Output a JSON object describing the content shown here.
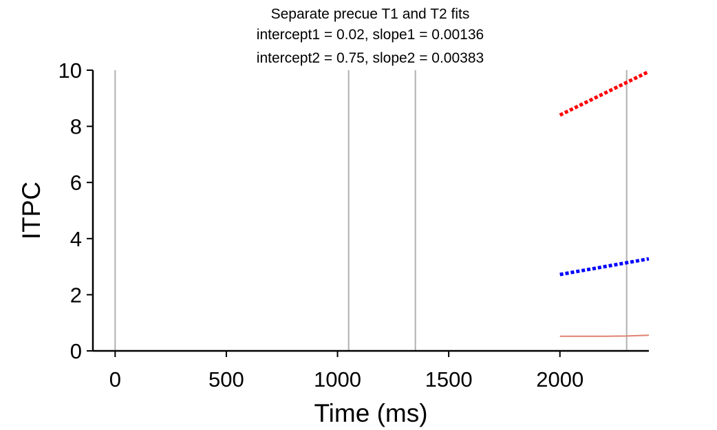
{
  "chart_data": {
    "type": "line",
    "title_lines": [
      "Separate precue T1 and T2 fits",
      "intercept1 = 0.02, slope1 = 0.00136",
      "intercept2 = 0.75, slope2 = 0.00383"
    ],
    "xlabel": "Time (ms)",
    "ylabel": "ITPC",
    "xlim": [
      -100,
      2400
    ],
    "ylim": [
      0,
      10
    ],
    "xticks": [
      0,
      500,
      1000,
      1500,
      2000
    ],
    "yticks": [
      0,
      2,
      4,
      6,
      8,
      10
    ],
    "grid": false,
    "vertical_lines": [
      0,
      1050,
      1350,
      2300
    ],
    "colors": {
      "vertical_line": "#b0b0b0",
      "red_fit": "#ff0000",
      "blue_fit": "#0000ff",
      "data_line": "#e08070"
    },
    "series": [
      {
        "color": "red_fit",
        "style": "dotted",
        "x": [
          2000,
          2400
        ],
        "y": [
          8.4,
          9.95
        ]
      },
      {
        "color": "blue_fit",
        "style": "dotted",
        "x": [
          2000,
          2400
        ],
        "y": [
          2.72,
          3.28
        ]
      },
      {
        "color": "data_line",
        "style": "solid",
        "x": [
          2000,
          2200,
          2300,
          2400
        ],
        "y": [
          0.52,
          0.52,
          0.53,
          0.56
        ]
      }
    ]
  }
}
